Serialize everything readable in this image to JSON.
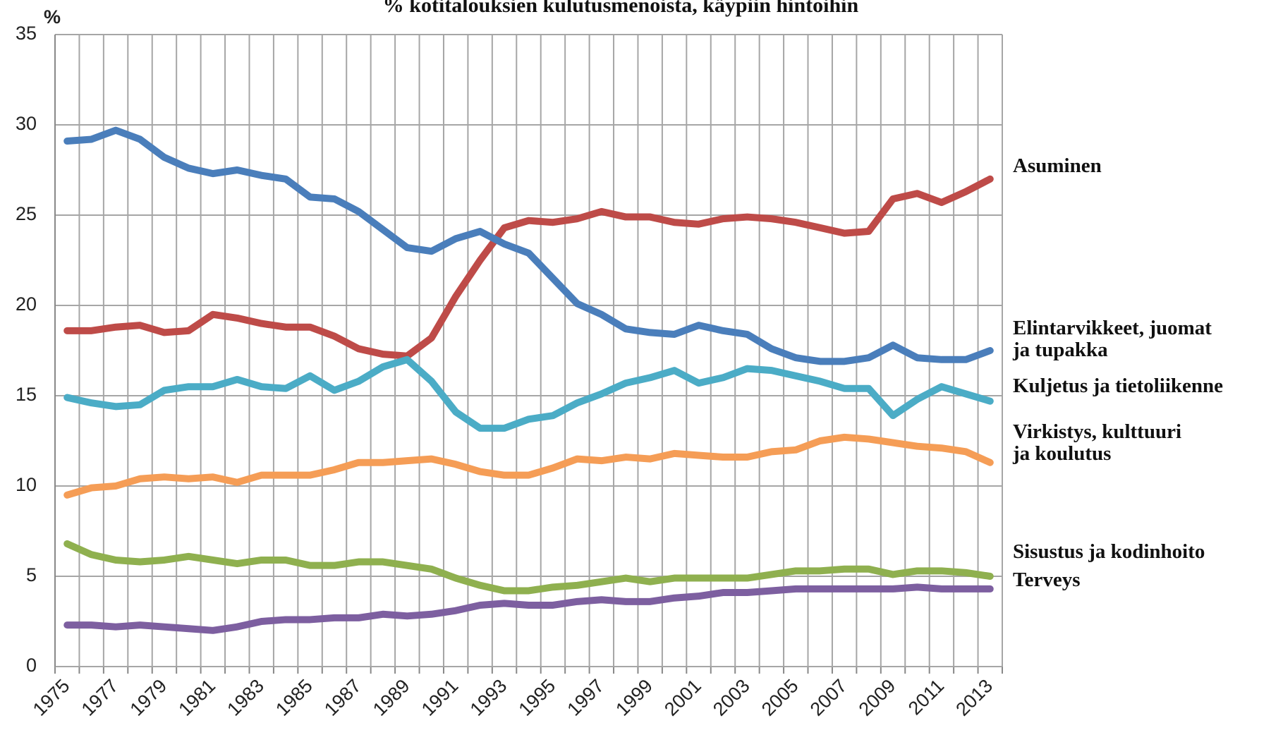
{
  "chart_data": {
    "type": "line",
    "title": "% kotitalouksien kulutusmenoista, käypiin hintoihin",
    "y_label": "%",
    "categories": [
      "1975",
      null,
      "1977",
      null,
      "1979",
      null,
      "1981",
      null,
      "1983",
      null,
      "1985",
      null,
      "1987",
      null,
      "1989",
      null,
      "1991",
      null,
      "1993",
      null,
      "1995",
      null,
      "1997",
      null,
      "1999",
      null,
      "2001",
      null,
      "2003",
      null,
      "2005",
      null,
      "2007",
      null,
      "2009",
      null,
      "2011",
      null,
      "2013"
    ],
    "ylim": [
      0,
      35
    ],
    "yticks": [
      0,
      5,
      10,
      15,
      20,
      25,
      30,
      35
    ],
    "grid": true,
    "series": [
      {
        "name": "Asuminen",
        "color": "#be4b48",
        "values": [
          18.6,
          18.6,
          18.8,
          18.9,
          18.5,
          18.6,
          19.5,
          19.3,
          19.0,
          18.8,
          18.8,
          18.3,
          17.6,
          17.3,
          17.2,
          18.2,
          20.5,
          22.5,
          24.3,
          24.7,
          24.6,
          24.8,
          25.2,
          24.9,
          24.9,
          24.6,
          24.5,
          24.8,
          24.9,
          24.8,
          24.6,
          24.3,
          24.0,
          24.1,
          25.9,
          26.2,
          25.7,
          26.3,
          27.0
        ]
      },
      {
        "name": "Elintarvikkeet, juomat\nja tupakka",
        "color": "#4a7ebb",
        "values": [
          29.1,
          29.2,
          29.7,
          29.2,
          28.2,
          27.6,
          27.3,
          27.5,
          27.2,
          27.0,
          26.0,
          25.9,
          25.2,
          24.2,
          23.2,
          23.0,
          23.7,
          24.1,
          23.4,
          22.9,
          21.5,
          20.1,
          19.5,
          18.7,
          18.5,
          18.4,
          18.9,
          18.6,
          18.4,
          17.6,
          17.1,
          16.9,
          16.9,
          17.1,
          17.8,
          17.1,
          17.0,
          17.0,
          17.5
        ]
      },
      {
        "name": "Kuljetus ja tietoliikenne",
        "color": "#4bacc6",
        "values": [
          14.9,
          14.6,
          14.4,
          14.5,
          15.3,
          15.5,
          15.5,
          15.9,
          15.5,
          15.4,
          16.1,
          15.3,
          15.8,
          16.6,
          17.0,
          15.8,
          14.1,
          13.2,
          13.2,
          13.7,
          13.9,
          14.6,
          15.1,
          15.7,
          16.0,
          16.4,
          15.7,
          16.0,
          16.5,
          16.4,
          16.1,
          15.8,
          15.4,
          15.4,
          13.9,
          14.8,
          15.5,
          15.1,
          14.7
        ]
      },
      {
        "name": "Virkistys, kulttuuri\nja koulutus",
        "color": "#f59d56",
        "values": [
          9.5,
          9.9,
          10.0,
          10.4,
          10.5,
          10.4,
          10.5,
          10.2,
          10.6,
          10.6,
          10.6,
          10.9,
          11.3,
          11.3,
          11.4,
          11.5,
          11.2,
          10.8,
          10.6,
          10.6,
          11.0,
          11.5,
          11.4,
          11.6,
          11.5,
          11.8,
          11.7,
          11.6,
          11.6,
          11.9,
          12.0,
          12.5,
          12.7,
          12.6,
          12.4,
          12.2,
          12.1,
          11.9,
          11.3
        ]
      },
      {
        "name": "Sisustus ja kodinhoito",
        "color": "#8fb04f",
        "values": [
          6.8,
          6.2,
          5.9,
          5.8,
          5.9,
          6.1,
          5.9,
          5.7,
          5.9,
          5.9,
          5.6,
          5.6,
          5.8,
          5.8,
          5.6,
          5.4,
          4.9,
          4.5,
          4.2,
          4.2,
          4.4,
          4.5,
          4.7,
          4.9,
          4.7,
          4.9,
          4.9,
          4.9,
          4.9,
          5.1,
          5.3,
          5.3,
          5.4,
          5.4,
          5.1,
          5.3,
          5.3,
          5.2,
          5.0
        ]
      },
      {
        "name": "Terveys",
        "color": "#7d5fa0",
        "values": [
          2.3,
          2.3,
          2.2,
          2.3,
          2.2,
          2.1,
          2.0,
          2.2,
          2.5,
          2.6,
          2.6,
          2.7,
          2.7,
          2.9,
          2.8,
          2.9,
          3.1,
          3.4,
          3.5,
          3.4,
          3.4,
          3.6,
          3.7,
          3.6,
          3.6,
          3.8,
          3.9,
          4.1,
          4.1,
          4.2,
          4.3,
          4.3,
          4.3,
          4.3,
          4.3,
          4.4,
          4.3,
          4.3,
          4.3
        ]
      }
    ]
  }
}
